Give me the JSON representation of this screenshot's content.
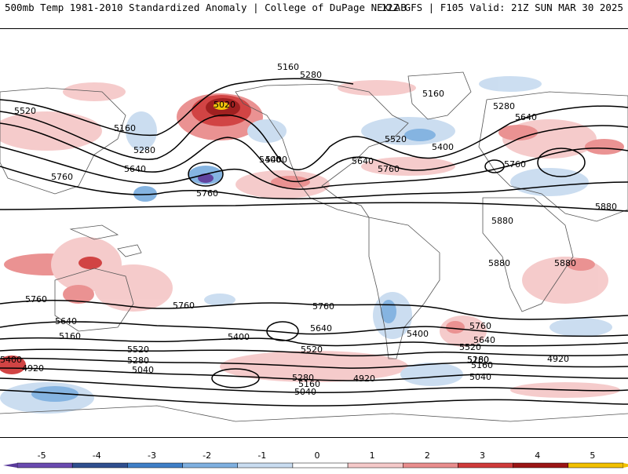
{
  "header": {
    "left": "500mb Temp 1981-2010 Standardized Anomaly | College of DuPage NEXLAB",
    "right": "12Z GFS | F105 Valid: 21Z SUN MAR 30 2025"
  },
  "legend": {
    "ticks": [
      "-5",
      "-4",
      "-3",
      "-2",
      "-1",
      "0",
      "1",
      "2",
      "3",
      "4",
      "5"
    ],
    "colors": [
      "#5a3a9a",
      "#2f4f8f",
      "#3f7fc7",
      "#7fb0e0",
      "#c9dcf0",
      "#ffffff",
      "#f5c9c9",
      "#e98d8d",
      "#cf3a3a",
      "#9b1515",
      "#f2c100"
    ]
  },
  "contour_labels": [
    "5160",
    "5280",
    "5520",
    "5160",
    "5280",
    "5640",
    "5760",
    "5760",
    "5400",
    "5520",
    "5640",
    "5760",
    "5400",
    "5160",
    "5280",
    "5640",
    "5760",
    "5880",
    "5880",
    "5880",
    "5880",
    "5760",
    "5760",
    "5760",
    "5640",
    "5400",
    "5520",
    "5640",
    "5760",
    "5400",
    "5640",
    "5520",
    "5160",
    "5520",
    "5400",
    "5280",
    "5160",
    "5040",
    "4920",
    "5280",
    "5160",
    "5040",
    "4920",
    "5280",
    "5160",
    "5040",
    "4920",
    "5400",
    "5020"
  ]
}
